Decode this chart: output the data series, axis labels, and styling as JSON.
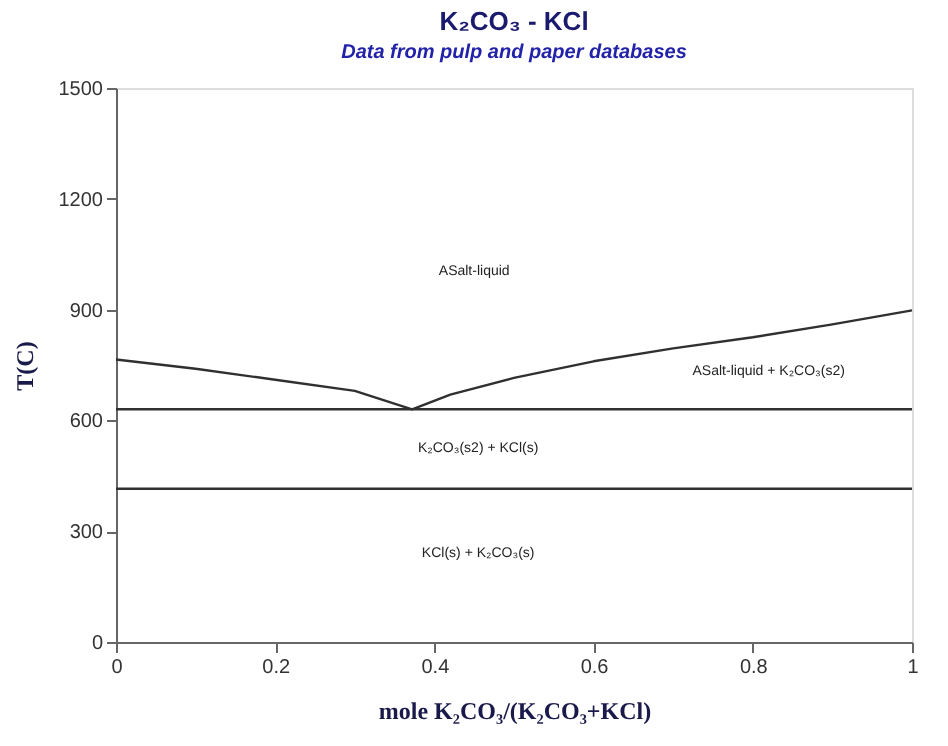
{
  "chart_data": {
    "type": "line",
    "title": "K₂CO₃ - KCl",
    "subtitle": "Data from pulp and paper databases",
    "xlabel": "mole K₂CO₃/(K₂CO₃+KCl)",
    "ylabel": "T(C)",
    "x": [
      0,
      0.1,
      0.2,
      0.3,
      0.372,
      0.42,
      0.5,
      0.6,
      0.7,
      0.8,
      0.9,
      1.0
    ],
    "series": [
      {
        "color": "#303030",
        "values": [
          765,
          740,
          710,
          680,
          630,
          670,
          715,
          760,
          795,
          825,
          860,
          898
        ]
      }
    ],
    "xlim": [
      0,
      1
    ],
    "ylim": [
      0,
      1500
    ],
    "xticks": [
      0,
      0.2,
      0.4,
      0.6,
      0.8,
      1
    ],
    "yticks": [
      0,
      300,
      600,
      900,
      1200,
      1500
    ],
    "ref_lines": [
      {
        "axis": "y",
        "value": 630,
        "color": "#303030"
      },
      {
        "axis": "y",
        "value": 415,
        "color": "#303030"
      }
    ],
    "annotations": [
      "ASalt-liquid",
      "ASalt-liquid + K₂CO₃(s2)",
      "K₂CO₃(s2) + KCl(s)",
      "KCl(s) + K₂CO₃(s)"
    ],
    "grid": false,
    "marker": "none",
    "line_style": "solid"
  }
}
